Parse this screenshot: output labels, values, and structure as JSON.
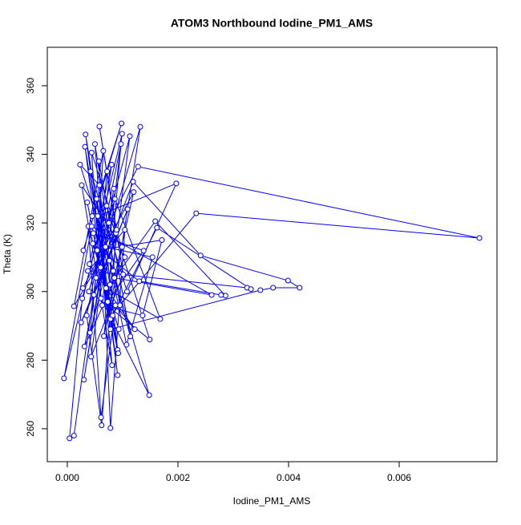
{
  "chart_data": {
    "type": "line",
    "title": "ATOM3 Northbound Iodine_PM1_AMS",
    "x_label": "Iodine_PM1_AMS",
    "y_label": "Theta (K)",
    "color": "#0000ff",
    "marker": "circle",
    "x": [
      0.00045,
      0.00098,
      0.00029,
      0.00072,
      0.00041,
      0.00088,
      0.00012,
      0.00065,
      0.00052,
      0.00132,
      0.00078,
      0.00036,
      0.00091,
      0.00058,
      0.00023,
      0.00083,
      0.00148,
      0.00061,
      0.00044,
      0.00104,
      0.00031,
      0.00075,
      0.00128,
      0.00745,
      0.00233,
      0.00095,
      0.0005,
      0.0007,
      0.00168,
      0.00086,
      0.00039,
      0.00113,
      0.00066,
      0.00099,
      0.00026,
      0.00081,
      0.00055,
      0.00197,
      0.00108,
      0.00042,
      0.00078,
      0.00349,
      0.00372,
      0.0042,
      0.00399,
      0.00241,
      0.00119,
      0.0006,
      0.00032,
      0.00092,
      0.00047,
      0.00138,
      0.00073,
      0.00097,
      0.00035,
      0.00062,
      0.00089,
      0.00058,
      0.00101,
      0.00043,
      0.00084,
      0.0003,
      0.00069,
      0.00154,
      0.00107,
      0.00053,
      0.00091,
      0.00033,
      0.00077,
      0.00159,
      0.00286,
      0.00278,
      0.0013,
      0.00046,
      0.00093,
      0.00038,
      0.00061,
      0.00087,
      0.00122,
      0.0004,
      0.0008,
      0.00012,
      4e-05,
      0.00027,
      0.00071,
      0.00149,
      0.00048,
      0.00109,
      0.00025,
      0.00076,
      0.00114,
      0.00057,
      0.00078,
      0.00104,
      0.00037,
      0.00325,
      0.00332,
      0.00162,
      0.00082,
      0.00054,
      0.00171,
      0.00136,
      0.00063,
      0.00099,
      -6e-05,
      0.00044,
      0.00261,
      0.00085,
      0.0012,
      0.00028
    ],
    "values": [
      322,
      349,
      312,
      335,
      288,
      317,
      295.7,
      341,
      304,
      348,
      292,
      326,
      283,
      331,
      337,
      306,
      269.8,
      298,
      340.5,
      310,
      284,
      320,
      336.4,
      315.6,
      322.8,
      296,
      343,
      301,
      292,
      327,
      300,
      345.3,
      287,
      313,
      331,
      278.5,
      322,
      331.5,
      300,
      335,
      289,
      300.4,
      301.1,
      301.1,
      303.2,
      310.5,
      332,
      307,
      342.2,
      282,
      317,
      311.9,
      297,
      343,
      293,
      261,
      318,
      348.1,
      305,
      281,
      330,
      274.3,
      313,
      310,
      284.5,
      327,
      275.6,
      345.8,
      302,
      320.5,
      298.8,
      299,
      303,
      314,
      289,
      319,
      263.3,
      296,
      289,
      308,
      337,
      258,
      257.2,
      298,
      325,
      286,
      299,
      324,
      291,
      309,
      286.9,
      338,
      260.2,
      318,
      306,
      301.1,
      300.7,
      318.6,
      293,
      312,
      315,
      293,
      296,
      346,
      274.7,
      319,
      299,
      304,
      329,
      301
    ],
    "xlim": [
      -0.000362,
      0.007768
    ],
    "ylim": [
      250.4,
      371.2
    ],
    "xticks": [
      {
        "value": 0,
        "label": "0.000"
      },
      {
        "value": 0.002,
        "label": "0.002"
      },
      {
        "value": 0.004,
        "label": "0.004"
      },
      {
        "value": 0.006,
        "label": "0.006"
      }
    ],
    "yticks": [
      260,
      280,
      300,
      320,
      340,
      360
    ]
  }
}
